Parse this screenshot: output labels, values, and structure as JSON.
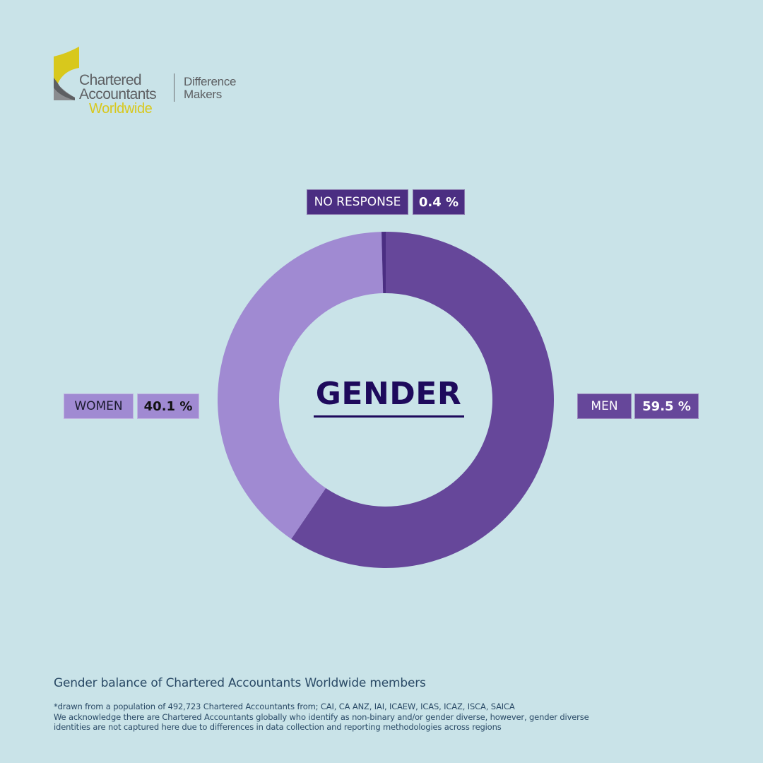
{
  "logo": {
    "line1": "Chartered",
    "line2": "Accountants",
    "line3": "Worldwide",
    "tagline1": "Difference",
    "tagline2": "Makers",
    "colors": {
      "yellow": "#d8c81c",
      "grey": "#5d5f62"
    }
  },
  "center_title": "GENDER",
  "labels": {
    "no_response": {
      "name": "NO RESPONSE",
      "value": "0.4 %"
    },
    "women": {
      "name": "WOMEN",
      "value": "40.1 %"
    },
    "men": {
      "name": "MEN",
      "value": "59.5 %"
    }
  },
  "colors": {
    "background": "#c9e3e8",
    "men": "#66479a",
    "women": "#a08ad2",
    "no_response": "#4b2e82",
    "title": "#1e0a5c"
  },
  "caption": "Gender balance of Chartered Accountants Worldwide members",
  "footnote": [
    "*drawn from a population of 492,723 Chartered Accountants from; CAI, CA ANZ, IAI, ICAEW, ICAS, ICAZ, ISCA, SAICA",
    "We acknowledge there are Chartered Accountants globally who identify as non-binary and/or gender diverse, however, gender diverse",
    "identities are not captured here due to differences in data collection and reporting methodologies across regions"
  ],
  "chart_data": {
    "type": "pie",
    "subtype": "donut",
    "title": "GENDER",
    "categories": [
      "Men",
      "Women",
      "No Response"
    ],
    "values": [
      59.5,
      40.1,
      0.4
    ],
    "units": "%",
    "colors": [
      "#66479a",
      "#a08ad2",
      "#4b2e82"
    ],
    "start_angle": "12 o'clock, clockwise",
    "caption": "Gender balance of Chartered Accountants Worldwide members",
    "population": 492723
  }
}
